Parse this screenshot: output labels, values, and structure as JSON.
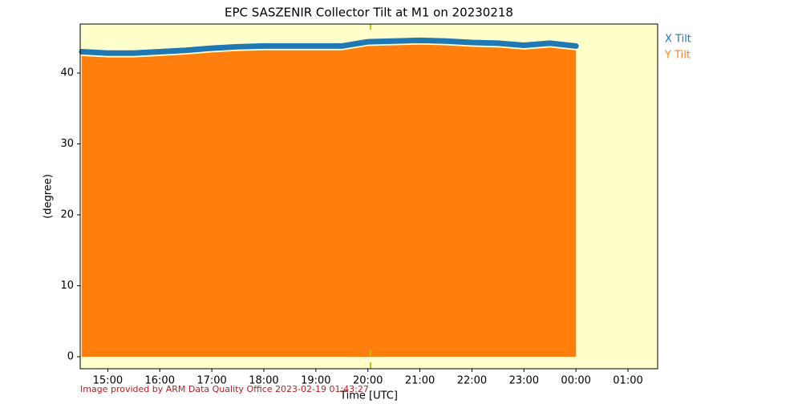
{
  "chart_data": {
    "type": "line",
    "title": "EPC SASZENIR Collector Tilt at M1 on 20230218",
    "xlabel": "Time [UTC]",
    "ylabel": "(degree)",
    "footer": "Image provided by ARM Data Quality Office 2023-02-19 01:43:27",
    "background": "#ffffcc",
    "x": [
      14.5,
      15,
      15.5,
      16,
      16.5,
      17,
      17.5,
      18,
      18.5,
      19,
      19.5,
      20,
      20.5,
      21,
      21.5,
      22,
      22.5,
      23,
      23.5,
      24
    ],
    "series": [
      {
        "name": "X Tilt",
        "color": "#1f77b4",
        "style": "line",
        "values": [
          43.0,
          42.8,
          42.8,
          43.0,
          43.2,
          43.5,
          43.7,
          43.8,
          43.8,
          43.8,
          43.8,
          44.4,
          44.5,
          44.6,
          44.5,
          44.3,
          44.2,
          43.9,
          44.2,
          43.8
        ]
      },
      {
        "name": "Y Tilt",
        "color": "#ff7f0e",
        "style": "area",
        "values": [
          42.4,
          42.2,
          42.2,
          42.4,
          42.6,
          42.9,
          43.1,
          43.2,
          43.2,
          43.2,
          43.2,
          43.8,
          43.9,
          44.0,
          43.9,
          43.7,
          43.6,
          43.3,
          43.6,
          43.2
        ]
      }
    ],
    "vline": {
      "value": 20.05,
      "color": "#b5c800"
    },
    "xlim": [
      14.47,
      25.57
    ],
    "ylim": [
      -1.7,
      46.9
    ],
    "xticks": [
      {
        "value": 15,
        "label": "15:00"
      },
      {
        "value": 16,
        "label": "16:00"
      },
      {
        "value": 17,
        "label": "17:00"
      },
      {
        "value": 18,
        "label": "18:00"
      },
      {
        "value": 19,
        "label": "19:00"
      },
      {
        "value": 20,
        "label": "20:00"
      },
      {
        "value": 21,
        "label": "21:00"
      },
      {
        "value": 22,
        "label": "22:00"
      },
      {
        "value": 23,
        "label": "23:00"
      },
      {
        "value": 24,
        "label": "00:00"
      },
      {
        "value": 25,
        "label": "01:00"
      }
    ],
    "yticks": [
      0,
      10,
      20,
      30,
      40
    ]
  }
}
